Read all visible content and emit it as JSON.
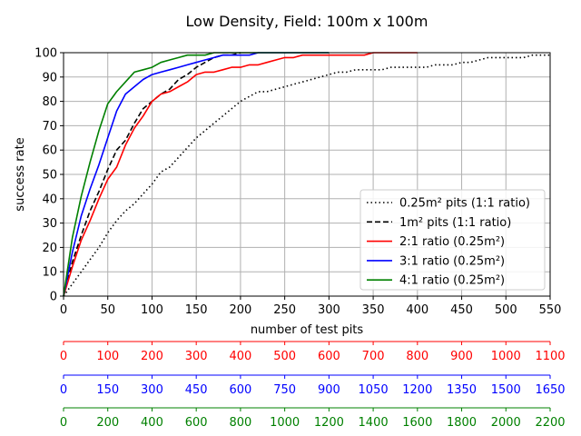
{
  "chart_data": {
    "type": "line",
    "title": "Low Density, Field: 100m x 100m",
    "xlabel": "number of test pits",
    "ylabel": "success rate",
    "xlim": [
      0,
      550
    ],
    "ylim": [
      0,
      100
    ],
    "xticks": [
      0,
      50,
      100,
      150,
      200,
      250,
      300,
      350,
      400,
      450,
      500,
      550
    ],
    "yticks": [
      0,
      10,
      20,
      30,
      40,
      50,
      60,
      70,
      80,
      90,
      100
    ],
    "grid": true,
    "legend_position": "lower-right",
    "series": [
      {
        "name": "0.25m² pits (1:1 ratio)",
        "color": "#000000",
        "style": "dotted",
        "x": [
          0,
          10,
          20,
          30,
          40,
          50,
          60,
          70,
          80,
          90,
          100,
          110,
          120,
          130,
          140,
          150,
          160,
          170,
          180,
          190,
          200,
          210,
          220,
          230,
          240,
          250,
          260,
          270,
          280,
          290,
          300,
          310,
          320,
          330,
          340,
          350,
          360,
          370,
          380,
          390,
          400,
          410,
          420,
          430,
          440,
          450,
          460,
          470,
          480,
          490,
          500,
          510,
          520,
          530,
          540,
          550
        ],
        "y": [
          0,
          5,
          10,
          15,
          20,
          26,
          31,
          35,
          38,
          42,
          46,
          51,
          53,
          57,
          61,
          65,
          68,
          71,
          74,
          77,
          80,
          82,
          84,
          84,
          85,
          86,
          87,
          88,
          89,
          90,
          91,
          92,
          92,
          93,
          93,
          93,
          93,
          94,
          94,
          94,
          94,
          94,
          95,
          95,
          95,
          96,
          96,
          97,
          98,
          98,
          98,
          98,
          98,
          99,
          99,
          99
        ]
      },
      {
        "name": "1m² pits (1:1 ratio)",
        "color": "#000000",
        "style": "dashed",
        "x": [
          0,
          10,
          20,
          30,
          40,
          50,
          60,
          70,
          80,
          90,
          100,
          110,
          120,
          130,
          140,
          150,
          160,
          170,
          180,
          190,
          200
        ],
        "y": [
          0,
          14,
          25,
          35,
          43,
          52,
          60,
          64,
          71,
          77,
          80,
          83,
          85,
          89,
          91,
          94,
          96,
          98,
          99,
          99,
          100
        ]
      },
      {
        "name": "2:1 ratio (0.25m²)",
        "color": "#ff0000",
        "style": "solid",
        "x": [
          0,
          10,
          20,
          30,
          40,
          50,
          60,
          70,
          80,
          90,
          100,
          110,
          120,
          130,
          140,
          150,
          160,
          170,
          180,
          190,
          200,
          210,
          220,
          230,
          240,
          250,
          260,
          270,
          280,
          290,
          300,
          310,
          320,
          330,
          340,
          350,
          360,
          370,
          380,
          390,
          400
        ],
        "y": [
          0,
          12,
          23,
          31,
          40,
          48,
          53,
          62,
          69,
          74,
          80,
          83,
          84,
          86,
          88,
          91,
          92,
          92,
          93,
          94,
          94,
          95,
          95,
          96,
          97,
          98,
          98,
          99,
          99,
          99,
          99,
          99,
          99,
          99,
          99,
          100,
          100,
          100,
          100,
          100,
          100
        ]
      },
      {
        "name": "3:1 ratio (0.25m²)",
        "color": "#0000ff",
        "style": "solid",
        "x": [
          0,
          10,
          20,
          30,
          40,
          50,
          60,
          70,
          80,
          90,
          100,
          110,
          120,
          130,
          140,
          150,
          160,
          170,
          180,
          190,
          200,
          210,
          220,
          230,
          240,
          250,
          260,
          270,
          280,
          290,
          300
        ],
        "y": [
          0,
          18,
          33,
          44,
          54,
          65,
          76,
          83,
          86,
          89,
          91,
          92,
          93,
          94,
          95,
          96,
          97,
          98,
          99,
          99,
          99,
          99,
          100,
          100,
          100,
          100,
          100,
          100,
          100,
          100,
          100
        ]
      },
      {
        "name": "4:1 ratio (0.25m²)",
        "color": "#008000",
        "style": "solid",
        "x": [
          0,
          10,
          20,
          30,
          40,
          50,
          60,
          70,
          80,
          90,
          100,
          110,
          120,
          130,
          140,
          150,
          160,
          170,
          180,
          190,
          200,
          210,
          220,
          230,
          240,
          250,
          260,
          270,
          280,
          290,
          300
        ],
        "y": [
          0,
          24,
          41,
          55,
          68,
          79,
          84,
          88,
          92,
          93,
          94,
          96,
          97,
          98,
          99,
          99,
          99,
          100,
          100,
          100,
          100,
          100,
          100,
          100,
          100,
          100,
          100,
          100,
          100,
          100,
          100
        ]
      }
    ],
    "secondary_axes": [
      {
        "color": "#ff0000",
        "ticks": [
          0,
          100,
          200,
          300,
          400,
          500,
          600,
          700,
          800,
          900,
          1000,
          1100
        ]
      },
      {
        "color": "#0000ff",
        "ticks": [
          0,
          150,
          300,
          450,
          600,
          750,
          900,
          1050,
          1200,
          1350,
          1500,
          1650
        ]
      },
      {
        "color": "#008000",
        "ticks": [
          0,
          200,
          400,
          600,
          800,
          1000,
          1200,
          1400,
          1600,
          1800,
          2000,
          2200
        ]
      }
    ]
  }
}
